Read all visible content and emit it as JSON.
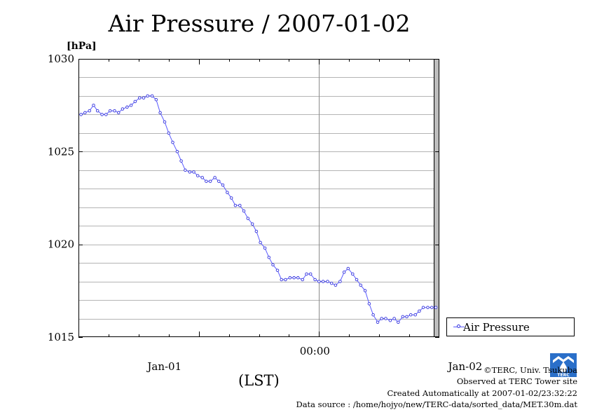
{
  "page": {
    "title": "Air Pressure / 2007-01-02",
    "unit_label": "[hPa]",
    "xlabel": "(LST)",
    "legend_label": "Air Pressure",
    "credits": [
      "©TERC, Univ. Tsukuba",
      "Observed at TERC Tower site",
      "Created Automatically at 2007-01-02/23:32:22",
      "Data source : /home/hojyo/new/TERC-data/sorted_data/MET.30m.dat"
    ],
    "logo_text": "TERC",
    "colors": {
      "series": "#5a5aff",
      "marker": "#3333dd",
      "grid": "#b4b4b4",
      "gray_bar": "#bdbdbd",
      "logo": "#2a6fc9"
    }
  },
  "chart_data": {
    "type": "line",
    "title": "Air Pressure / 2007-01-02",
    "ylabel": "[hPa]",
    "xlabel": "(LST)",
    "ylim": [
      1015,
      1030
    ],
    "y_ticks": [
      "1030",
      "1025",
      "1020",
      "1015"
    ],
    "x_tick_labels": [
      "Jan-01",
      "00:00",
      "Jan-02"
    ],
    "x_units": "hours relative to 2007-01-02 00:00 LST",
    "xlim": [
      -48,
      24
    ],
    "grid": true,
    "legend_position": "right",
    "series": [
      {
        "name": "Air Pressure",
        "x": [
          -47.5,
          -46.7,
          -45.8,
          -45.0,
          -44.2,
          -43.3,
          -42.5,
          -41.7,
          -40.8,
          -40.0,
          -39.2,
          -38.3,
          -37.5,
          -36.7,
          -35.8,
          -35.0,
          -34.2,
          -33.3,
          -32.5,
          -31.7,
          -30.8,
          -30.0,
          -29.2,
          -28.3,
          -27.5,
          -26.7,
          -25.8,
          -25.0,
          -24.2,
          -23.3,
          -22.5,
          -21.7,
          -20.8,
          -20.0,
          -19.2,
          -18.3,
          -17.5,
          -16.7,
          -15.8,
          -15.0,
          -14.2,
          -13.3,
          -12.5,
          -11.7,
          -10.8,
          -10.0,
          -9.2,
          -8.3,
          -7.5,
          -6.7,
          -5.8,
          -5.0,
          -4.2,
          -3.3,
          -2.5,
          -1.7,
          -0.8,
          0.0,
          0.8,
          1.7,
          2.5,
          3.3,
          4.2,
          5.0,
          5.8,
          6.7,
          7.5,
          8.3,
          9.2,
          10.0,
          10.8,
          11.7,
          12.5,
          13.3,
          14.2,
          15.0,
          15.8,
          16.7,
          17.5,
          18.3,
          19.2,
          20.0,
          20.8,
          21.7,
          22.5,
          23.3
        ],
        "values": [
          1027.0,
          1027.1,
          1027.2,
          1027.5,
          1027.2,
          1027.0,
          1027.0,
          1027.2,
          1027.2,
          1027.1,
          1027.3,
          1027.4,
          1027.5,
          1027.7,
          1027.9,
          1027.9,
          1028.0,
          1028.0,
          1027.8,
          1027.1,
          1026.6,
          1026.0,
          1025.5,
          1025.0,
          1024.5,
          1024.0,
          1023.9,
          1023.9,
          1023.7,
          1023.6,
          1023.4,
          1023.4,
          1023.6,
          1023.4,
          1023.2,
          1022.8,
          1022.5,
          1022.1,
          1022.1,
          1021.8,
          1021.4,
          1021.1,
          1020.7,
          1020.1,
          1019.8,
          1019.3,
          1018.9,
          1018.6,
          1018.1,
          1018.1,
          1018.2,
          1018.2,
          1018.2,
          1018.1,
          1018.4,
          1018.4,
          1018.1,
          1018.0,
          1018.0,
          1018.0,
          1017.9,
          1017.8,
          1018.0,
          1018.5,
          1018.7,
          1018.4,
          1018.1,
          1017.8,
          1017.5,
          1016.8,
          1016.2,
          1015.8,
          1016.0,
          1016.0,
          1015.9,
          1016.0,
          1015.8,
          1016.1,
          1016.1,
          1016.2,
          1016.2,
          1016.4,
          1016.6,
          1016.6,
          1016.6,
          1016.6
        ]
      }
    ]
  }
}
